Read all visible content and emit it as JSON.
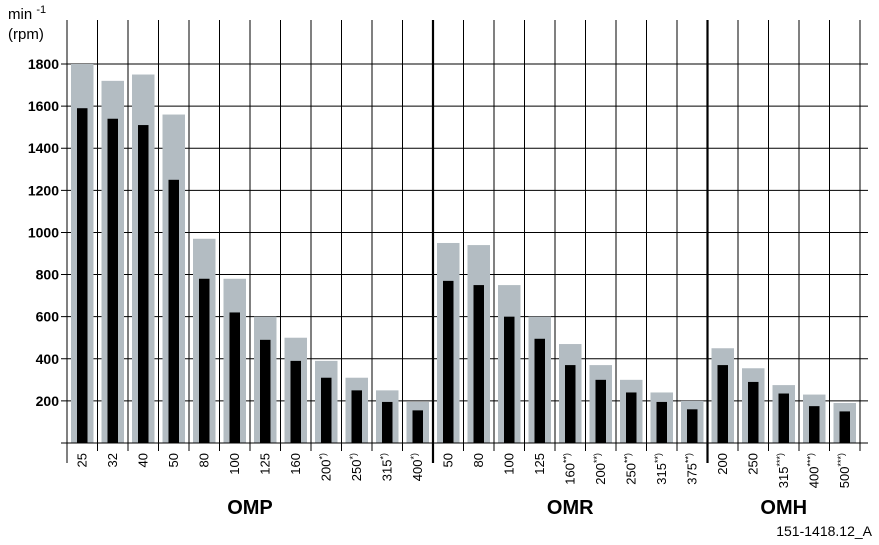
{
  "chart_data": {
    "type": "bar",
    "ylabel": "min-1",
    "ylabel_line2": "(rpm)",
    "ylim": [
      0,
      1800
    ],
    "yticks": [
      "200",
      "400",
      "600",
      "800",
      "1000",
      "1200",
      "1400",
      "1600",
      "1800"
    ],
    "grid": true,
    "groups": [
      {
        "name": "OMP",
        "categories": [
          "25",
          "32",
          "40",
          "50",
          "80",
          "100",
          "125",
          "160",
          "200*)",
          "250*)",
          "315*)",
          "400*)"
        ],
        "series": [
          {
            "values": [
              1800,
              1720,
              1750,
              1560,
              970,
              780,
              600,
              500,
              390,
              310,
              250,
              195
            ]
          },
          {
            "values": [
              1590,
              1540,
              1510,
              1250,
              780,
              620,
              490,
              390,
              310,
              250,
              195,
              155
            ]
          }
        ]
      },
      {
        "name": "OMR",
        "categories": [
          "50",
          "80",
          "100",
          "125",
          "160**)",
          "200**)",
          "250**)",
          "315**)",
          "375**)"
        ],
        "series": [
          {
            "values": [
              950,
              940,
              750,
              600,
              470,
              370,
              300,
              240,
              200
            ]
          },
          {
            "values": [
              770,
              750,
              600,
              495,
              370,
              300,
              240,
              195,
              160
            ]
          }
        ]
      },
      {
        "name": "OMH",
        "categories": [
          "200",
          "250",
          "315***)",
          "400***)",
          "500***)"
        ],
        "series": [
          {
            "values": [
              450,
              355,
              275,
              230,
              190
            ]
          },
          {
            "values": [
              370,
              290,
              235,
              175,
              150
            ]
          }
        ]
      }
    ],
    "colors": {
      "series0": "#b3bcc2",
      "series1": "#000000"
    },
    "reference": "151-1418.12_A"
  }
}
